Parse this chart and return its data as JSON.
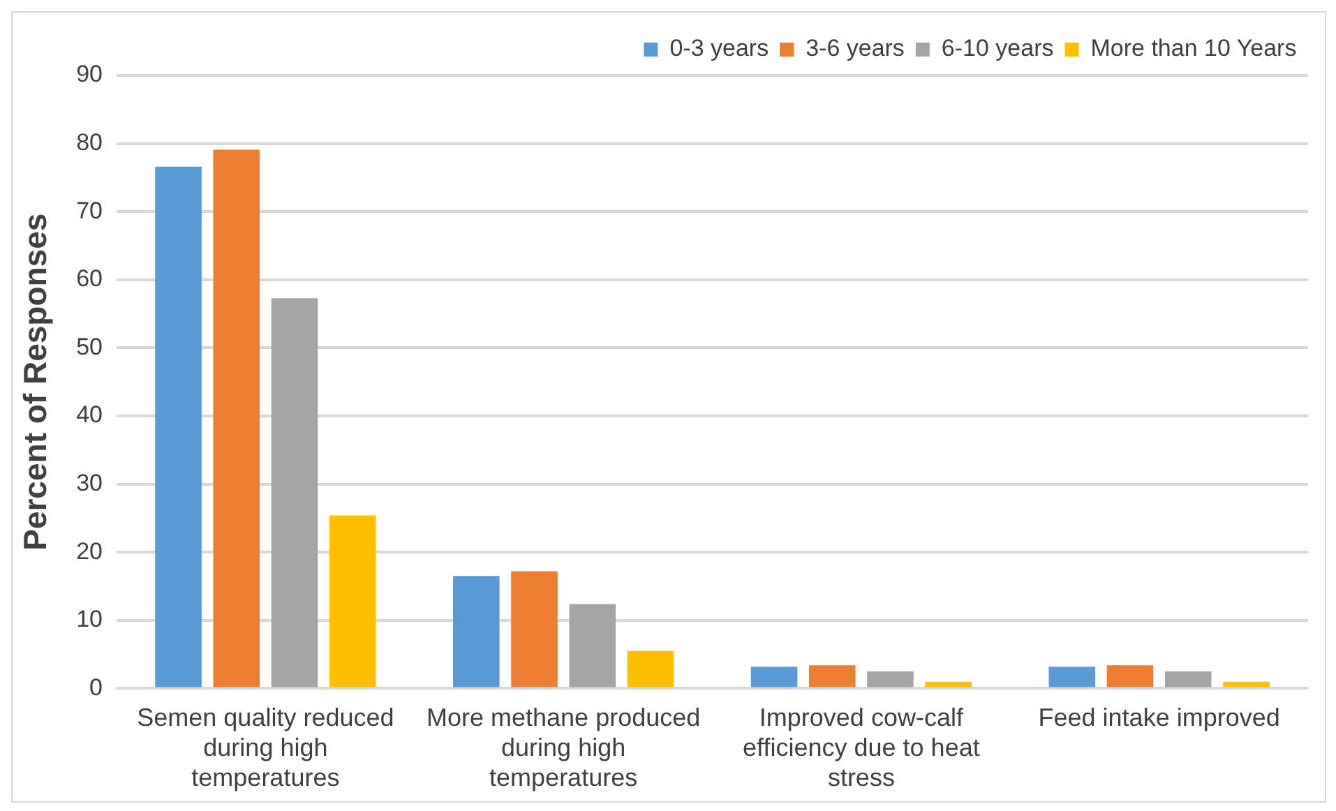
{
  "chart_data": {
    "type": "bar",
    "ylabel": "Percent of Responses",
    "categories": [
      "Semen quality reduced during high temperatures",
      "More methane produced during high temperatures",
      "Improved cow-calf efficiency due to heat stress",
      "Feed intake improved"
    ],
    "series": [
      {
        "name": "0-3 years",
        "color": "#5b9bd5",
        "values": [
          76.6,
          16.5,
          3.2,
          3.2
        ]
      },
      {
        "name": "3-6 years",
        "color": "#ed7d31",
        "values": [
          79.1,
          17.2,
          3.4,
          3.4
        ]
      },
      {
        "name": "6-10 years",
        "color": "#a5a5a5",
        "values": [
          57.3,
          12.4,
          2.5,
          2.5
        ]
      },
      {
        "name": "More than 10 Years",
        "color": "#ffc000",
        "values": [
          25.4,
          5.5,
          1.0,
          1.0
        ]
      }
    ],
    "ylim": [
      0,
      90
    ],
    "yticks": [
      0,
      10,
      20,
      30,
      40,
      50,
      60,
      70,
      80,
      90
    ],
    "grid": "y",
    "legend": "top right"
  }
}
